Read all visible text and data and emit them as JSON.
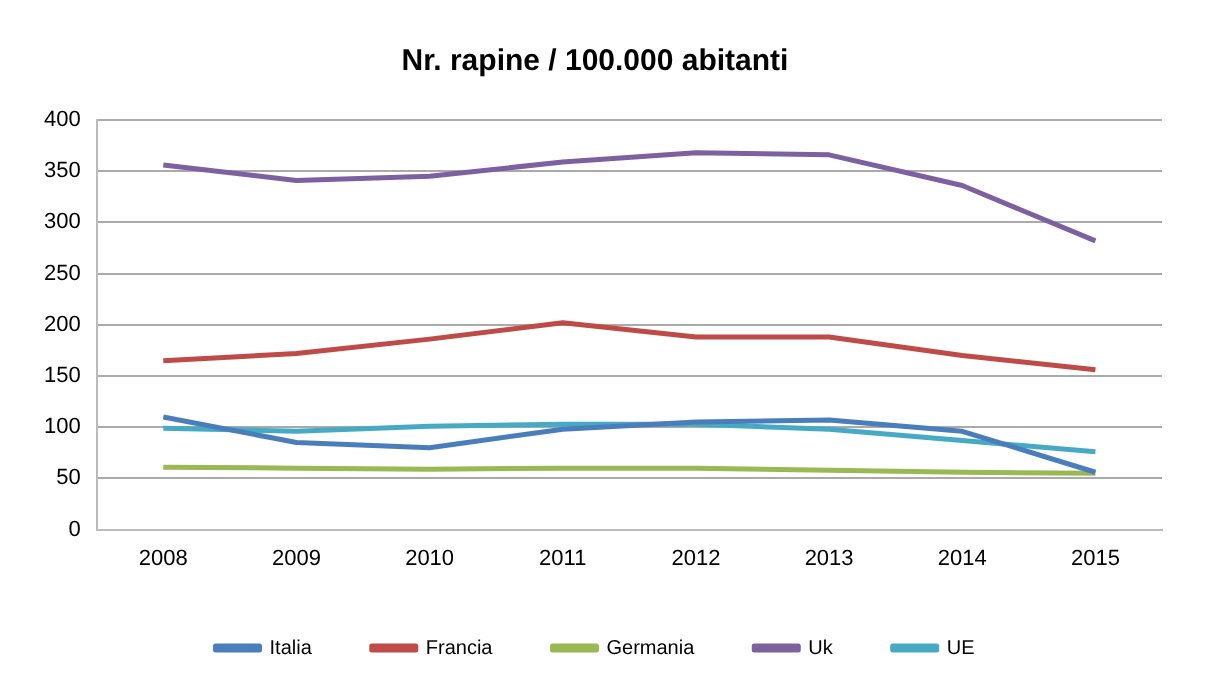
{
  "chart_data": {
    "type": "line",
    "title": "Nr. rapine / 100.000 abitanti",
    "categories": [
      "2008",
      "2009",
      "2010",
      "2011",
      "2012",
      "2013",
      "2014",
      "2015"
    ],
    "series": [
      {
        "name": "Italia",
        "color": "#4a7ebb",
        "values": [
          110,
          85,
          80,
          98,
          105,
          107,
          96,
          56
        ]
      },
      {
        "name": "Francia",
        "color": "#be4b48",
        "values": [
          165,
          172,
          186,
          202,
          188,
          188,
          170,
          156
        ]
      },
      {
        "name": "Germania",
        "color": "#98b954",
        "values": [
          61,
          60,
          59,
          60,
          60,
          58,
          56,
          55
        ]
      },
      {
        "name": "Uk",
        "color": "#7d60a0",
        "values": [
          356,
          341,
          345,
          359,
          368,
          366,
          336,
          282
        ]
      },
      {
        "name": "UE",
        "color": "#46aac5",
        "values": [
          99,
          96,
          101,
          103,
          103,
          98,
          87,
          76
        ]
      }
    ],
    "ylim": [
      0,
      400
    ],
    "yticks": [
      0,
      50,
      100,
      150,
      200,
      250,
      300,
      350,
      400
    ],
    "grid": "y",
    "legend": "bottom",
    "marker": "none",
    "line_style": "solid"
  }
}
